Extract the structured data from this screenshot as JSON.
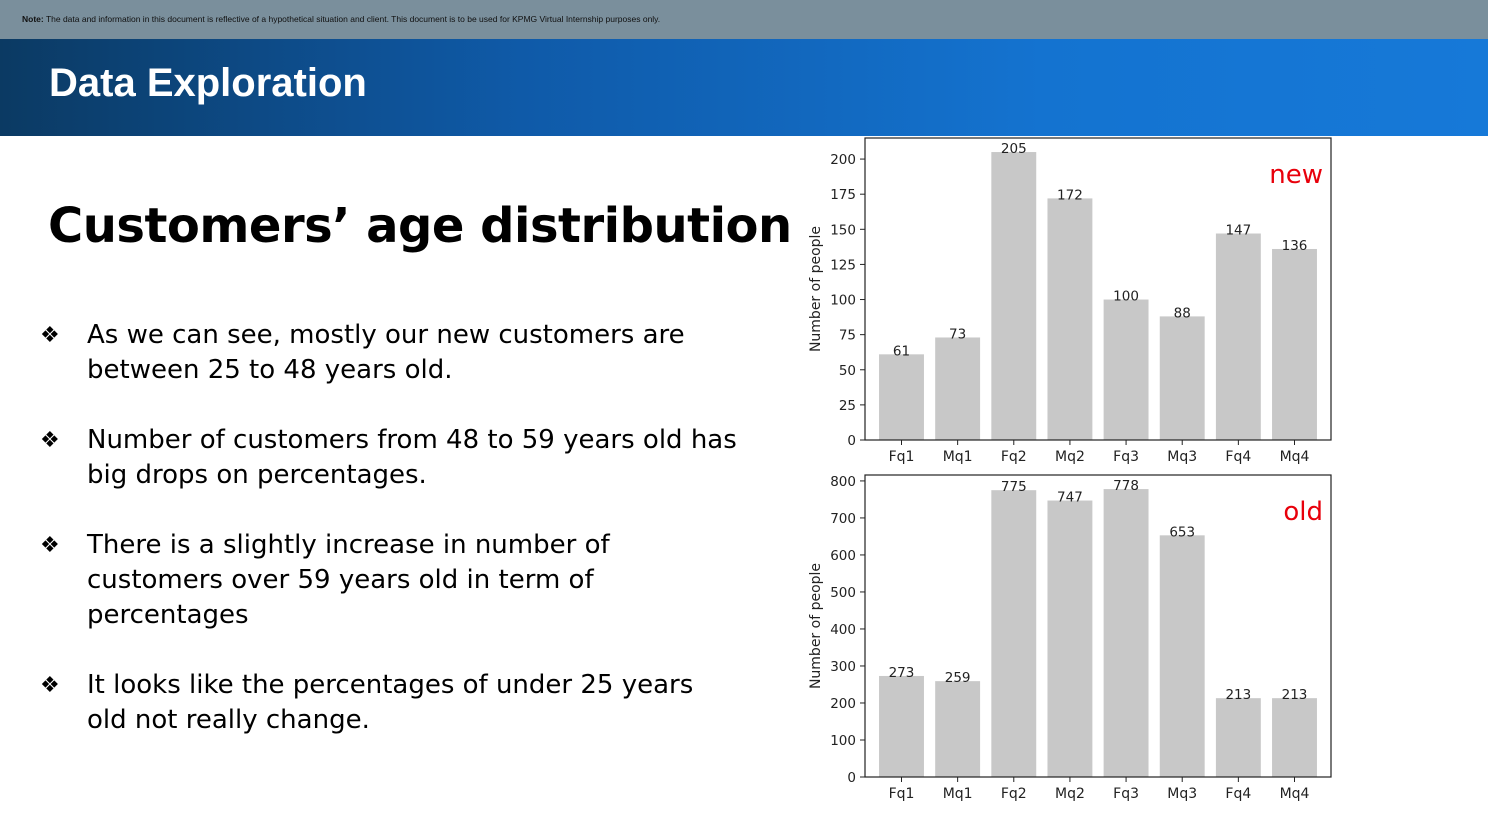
{
  "note": {
    "label": "Note:",
    "text": " The data and information in this document is reflective of a hypothetical situation and client. This document is to be used for KPMG Virtual Internship purposes only."
  },
  "header": {
    "title": "Data Exploration"
  },
  "main": {
    "heading": "Customers’ age distribution",
    "bullet_icon": "four-diamond-bullet-icon",
    "bullets": [
      "As we can see, mostly our new customers are between 25 to 48 years old.",
      "Number of customers from 48 to 59 years old has big drops on percentages.",
      "There is a slightly increase in number of customers over 59 years old in term of percentages",
      "It looks like the percentages of under 25 years old not really change."
    ]
  },
  "chart_data": [
    {
      "type": "bar",
      "annotation": "new",
      "annotation_color": "#e8000b",
      "bar_color": "#c8c8c8",
      "categories": [
        "Fq1",
        "Mq1",
        "Fq2",
        "Mq2",
        "Fq3",
        "Mq3",
        "Fq4",
        "Mq4"
      ],
      "values": [
        61,
        73,
        205,
        172,
        100,
        88,
        147,
        136
      ],
      "ylabel": "Number of people",
      "yticks": [
        0,
        25,
        50,
        75,
        100,
        125,
        150,
        175,
        200
      ],
      "ylim": [
        0,
        215
      ]
    },
    {
      "type": "bar",
      "annotation": "old",
      "annotation_color": "#e8000b",
      "bar_color": "#c8c8c8",
      "categories": [
        "Fq1",
        "Mq1",
        "Fq2",
        "Mq2",
        "Fq3",
        "Mq3",
        "Fq4",
        "Mq4"
      ],
      "values": [
        273,
        259,
        775,
        747,
        778,
        653,
        213,
        213
      ],
      "ylabel": "Number of people",
      "yticks": [
        0,
        100,
        200,
        300,
        400,
        500,
        600,
        700,
        800
      ],
      "ylim": [
        0,
        816
      ]
    }
  ]
}
